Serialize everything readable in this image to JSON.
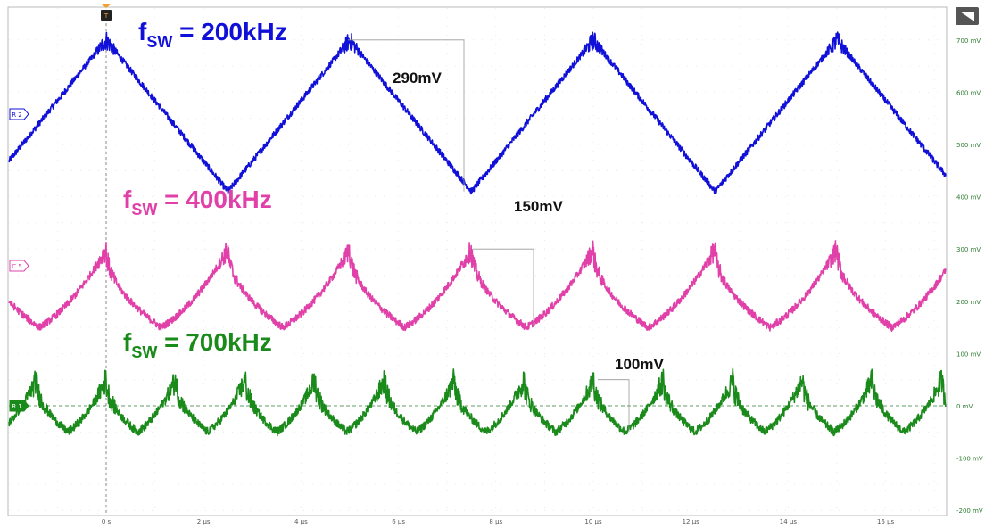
{
  "chart_data": {
    "type": "line",
    "xlabel": "",
    "ylabel": "",
    "x_ticks": [
      "0 s",
      "2 µs",
      "4 µs",
      "6 µs",
      "8 µs",
      "10 µs",
      "12 µs",
      "14 µs",
      "16 µs"
    ],
    "y_ticks": [
      "700 mV",
      "600 mV",
      "500 mV",
      "400 mV",
      "300 mV",
      "200 mV",
      "100 mV",
      "0 mV",
      "-100 mV",
      "-200 mV"
    ],
    "xlim": [
      -2.1,
      18.0
    ],
    "ylim": [
      -200,
      700
    ],
    "grid": true,
    "series": [
      {
        "name": "R2",
        "color": "#1010d8",
        "label_main": "f",
        "label_sub": "SW",
        "label_rest": " = 200kHz",
        "period_us": 5.0,
        "peak_times_us": [
          0,
          5,
          10,
          15
        ],
        "peak_mv": 700,
        "valley_mv": 410,
        "ripple_label": "290mV"
      },
      {
        "name": "C5",
        "color": "#e040a8",
        "label_main": "f",
        "label_sub": "SW",
        "label_rest": " = 400kHz",
        "period_us": 2.5,
        "peak_times_us": [
          0,
          2.5,
          5,
          7.5,
          10,
          12.5,
          15,
          17.5
        ],
        "peak_mv": 300,
        "valley_mv": 150,
        "ripple_label": "150mV"
      },
      {
        "name": "R1",
        "color": "#1a8a1a",
        "label_main": "f",
        "label_sub": "SW",
        "label_rest": " = 700kHz",
        "period_us": 1.43,
        "peak_times_us": [
          0,
          1.43,
          2.86,
          4.29,
          5.71,
          7.14,
          8.57,
          10,
          11.43,
          12.86,
          14.29,
          15.71,
          17.14
        ],
        "peak_mv": 50,
        "valley_mv": -50,
        "ripple_label": "100mV"
      }
    ],
    "trigger_label": "T"
  }
}
